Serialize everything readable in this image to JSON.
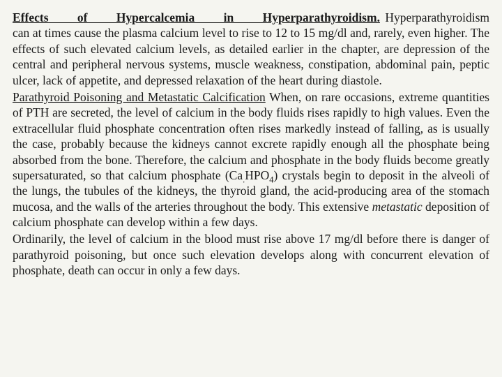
{
  "para1": {
    "title": "Effects of Hypercalcemia in Hyperparathyroidism.",
    "body": " Hyperparathyroidism can at times cause the plasma calcium level to rise to 12 to 15 mg/dl and, rarely, even higher. The effects of such elevated calcium levels, as detailed earlier in the chapter, are depression of the central and peripheral nervous systems, muscle weakness, constipation, abdominal pain, peptic ulcer, lack of appetite, and depressed relaxation of the heart during diastole."
  },
  "para2": {
    "title": "Parathyroid Poisoning and Metastatic Calcification",
    "body_before": " When, on rare occasions, extreme quantities of PTH are secreted, the level of calcium in the body fluids rises rapidly to high values. Even the extracellular fluid phosphate concentration often rises markedly instead of falling, as is usually the case, probably because the kidneys cannot excrete rapidly enough all the phosphate being absorbed from the bone. Therefore, the calcium and phosphate in the body fluids become greatly supersaturated, so that calcium phosphate (Ca",
    "sub1": ".",
    "mid1": "HPO",
    "sub2": "4",
    "body_mid": ") crystals begin to deposit in the alveoli of the lungs, the tubules of the kidneys, the thyroid gland, the acid-producing area of the stomach mucosa, and the walls of the arteries throughout the body. This extensive ",
    "italic": "metastatic",
    "body_after": " deposition of calcium phosphate can develop within a few days."
  },
  "para3": {
    "body": "Ordinarily, the level of calcium in the blood must rise above 17 mg/dl before there is danger of parathyroid poisoning, but once such elevation develops along with concurrent elevation of phosphate, death can occur in only a few days."
  }
}
